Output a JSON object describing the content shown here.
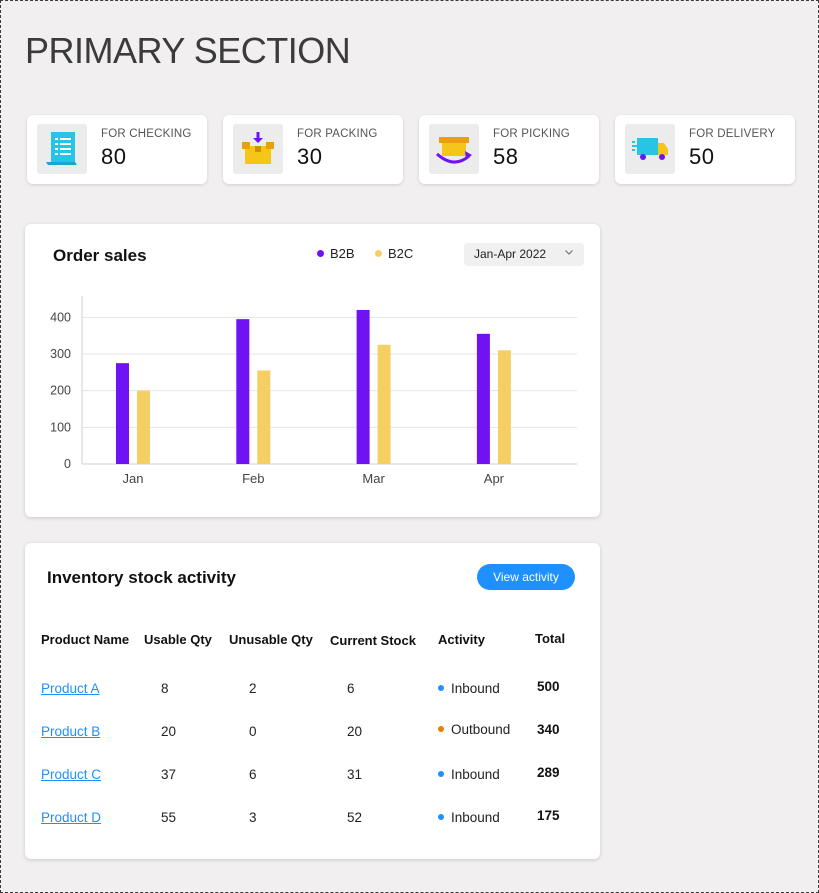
{
  "page_title": "PRIMARY SECTION",
  "stats": [
    {
      "label": "FOR CHECKING",
      "value": "80",
      "icon": "checklist-icon"
    },
    {
      "label": "FOR PACKING",
      "value": "30",
      "icon": "package-icon"
    },
    {
      "label": "FOR PICKING",
      "value": "58",
      "icon": "box-arrow-icon"
    },
    {
      "label": "FOR DELIVERY",
      "value": "50",
      "icon": "delivery-truck-icon"
    }
  ],
  "order_sales": {
    "title": "Order sales",
    "legend": [
      {
        "label": "B2B",
        "color": "#7112f4"
      },
      {
        "label": "B2C",
        "color": "#f6cf64"
      }
    ],
    "date_range": "Jan-Apr 2022"
  },
  "chart_data": {
    "type": "bar",
    "categories": [
      "Jan",
      "Feb",
      "Mar",
      "Apr"
    ],
    "series": [
      {
        "name": "B2B",
        "color": "#7112f4",
        "values": [
          275,
          395,
          420,
          355
        ]
      },
      {
        "name": "B2C",
        "color": "#f6cf64",
        "values": [
          200,
          255,
          325,
          310
        ]
      }
    ],
    "yticks": [
      0,
      100,
      200,
      300,
      400
    ],
    "ylim": [
      0,
      450
    ],
    "grid": true,
    "legend_position": "top"
  },
  "inventory": {
    "title": "Inventory stock activity",
    "button_label": "View activity",
    "columns": [
      "Product Name",
      "Usable Qty",
      "Unusable Qty",
      "Current Stock",
      "Activity",
      "Total"
    ],
    "rows": [
      {
        "product": "Product A",
        "usable": "8",
        "unusable": "2",
        "current": "6",
        "activity": "Inbound",
        "activity_color": "#1e90ff",
        "total": "500"
      },
      {
        "product": "Product B",
        "usable": "20",
        "unusable": "0",
        "current": "20",
        "activity": "Outbound",
        "activity_color": "#f07d00",
        "total": "340"
      },
      {
        "product": "Product C",
        "usable": "37",
        "unusable": "6",
        "current": "31",
        "activity": "Inbound",
        "activity_color": "#1e90ff",
        "total": "289"
      },
      {
        "product": "Product D",
        "usable": "55",
        "unusable": "3",
        "current": "52",
        "activity": "Inbound",
        "activity_color": "#1e90ff",
        "total": "175"
      }
    ]
  }
}
